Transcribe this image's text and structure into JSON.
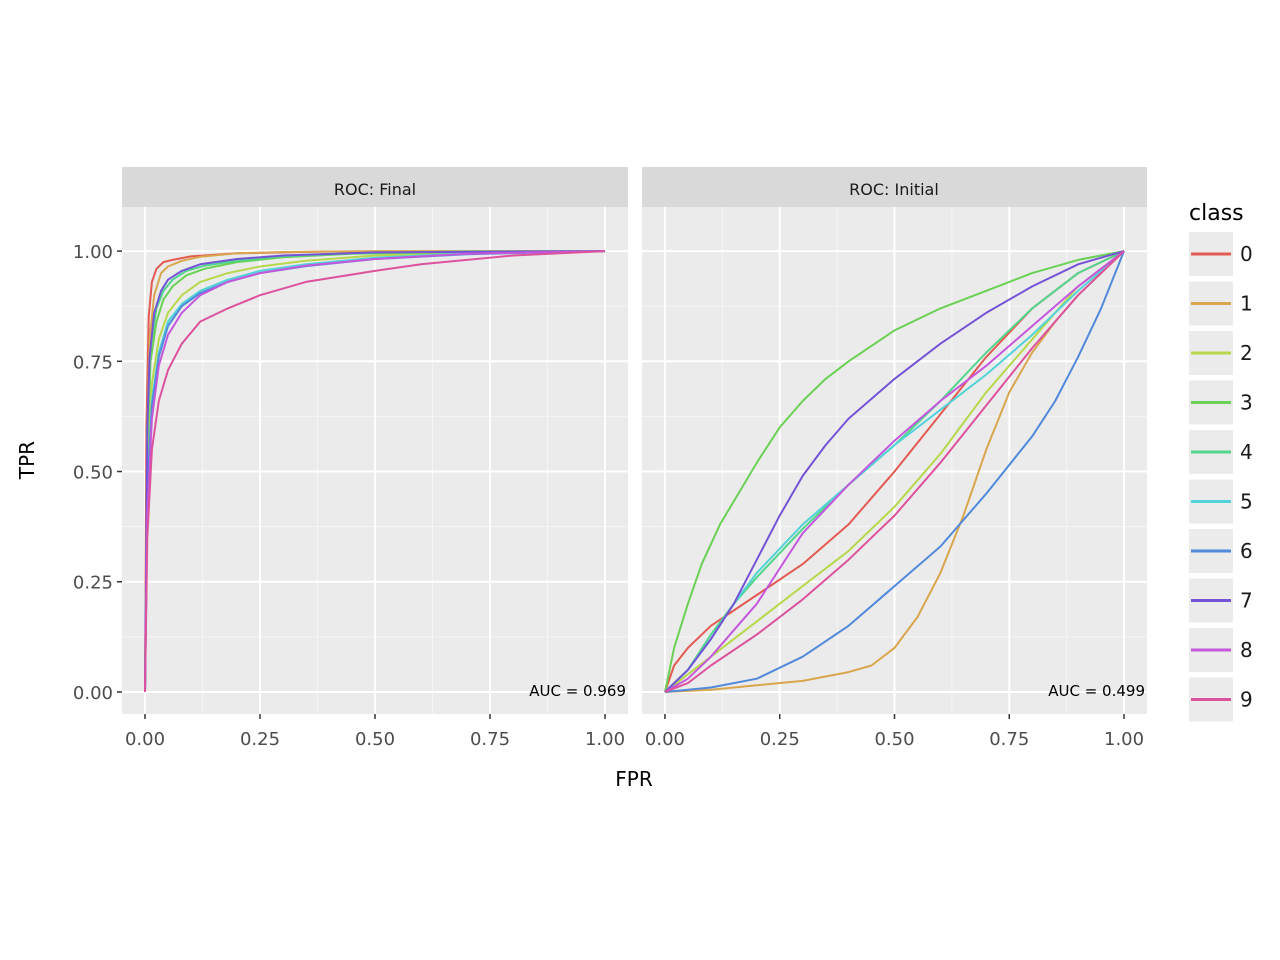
{
  "chart_data": {
    "type": "line",
    "xlabel": "FPR",
    "ylabel": "TPR",
    "xlim": [
      -0.05,
      1.05
    ],
    "ylim": [
      -0.05,
      1.1
    ],
    "ticks": [
      0,
      0.25,
      0.5,
      0.75,
      1
    ],
    "x_tick_labels": [
      "0.00",
      "0.25",
      "0.50",
      "0.75",
      "1.00"
    ],
    "y_tick_labels": [
      "0.00",
      "0.25",
      "0.50",
      "0.75",
      "1.00"
    ],
    "grid": true,
    "legend": {
      "title": "class",
      "position": "right",
      "entries": [
        {
          "label": "0",
          "color": "#e35a52"
        },
        {
          "label": "1",
          "color": "#d9a64e"
        },
        {
          "label": "2",
          "color": "#b6d84a"
        },
        {
          "label": "3",
          "color": "#6ad155"
        },
        {
          "label": "4",
          "color": "#52d68c"
        },
        {
          "label": "5",
          "color": "#52d3d7"
        },
        {
          "label": "6",
          "color": "#5189db"
        },
        {
          "label": "7",
          "color": "#7553d6"
        },
        {
          "label": "8",
          "color": "#c557dd"
        },
        {
          "label": "9",
          "color": "#dc529c"
        }
      ]
    },
    "panels": [
      {
        "strip": "ROC: Final",
        "auc_text": "AUC = 0.969",
        "series": [
          {
            "name": "0",
            "x": [
              0,
              0.003,
              0.008,
              0.015,
              0.025,
              0.04,
              0.06,
              0.1,
              0.2,
              0.4,
              1
            ],
            "y": [
              0,
              0.6,
              0.85,
              0.93,
              0.96,
              0.975,
              0.98,
              0.988,
              0.995,
              0.999,
              1
            ]
          },
          {
            "name": "1",
            "x": [
              0,
              0.005,
              0.01,
              0.02,
              0.035,
              0.05,
              0.08,
              0.12,
              0.2,
              0.3,
              0.5,
              1
            ],
            "y": [
              0,
              0.6,
              0.8,
              0.9,
              0.95,
              0.965,
              0.978,
              0.987,
              0.995,
              0.998,
              1,
              1
            ]
          },
          {
            "name": "2",
            "x": [
              0,
              0.005,
              0.015,
              0.03,
              0.05,
              0.08,
              0.12,
              0.18,
              0.25,
              0.35,
              0.5,
              0.7,
              1
            ],
            "y": [
              0,
              0.5,
              0.7,
              0.8,
              0.86,
              0.9,
              0.93,
              0.95,
              0.965,
              0.978,
              0.99,
              0.997,
              1
            ]
          },
          {
            "name": "3",
            "x": [
              0,
              0.005,
              0.012,
              0.025,
              0.04,
              0.06,
              0.09,
              0.13,
              0.2,
              0.3,
              0.45,
              0.7,
              1
            ],
            "y": [
              0,
              0.55,
              0.75,
              0.84,
              0.89,
              0.92,
              0.945,
              0.96,
              0.975,
              0.986,
              0.994,
              0.998,
              1
            ]
          },
          {
            "name": "4",
            "x": [
              0,
              0.005,
              0.012,
              0.025,
              0.04,
              0.06,
              0.09,
              0.13,
              0.2,
              0.3,
              0.45,
              0.7,
              1
            ],
            "y": [
              0,
              0.6,
              0.78,
              0.87,
              0.91,
              0.935,
              0.955,
              0.967,
              0.978,
              0.988,
              0.995,
              0.999,
              1
            ]
          },
          {
            "name": "5",
            "x": [
              0,
              0.005,
              0.015,
              0.03,
              0.05,
              0.08,
              0.12,
              0.18,
              0.25,
              0.35,
              0.5,
              0.7,
              1
            ],
            "y": [
              0,
              0.45,
              0.66,
              0.77,
              0.84,
              0.88,
              0.91,
              0.935,
              0.955,
              0.97,
              0.985,
              0.995,
              1
            ]
          },
          {
            "name": "6",
            "x": [
              0,
              0.005,
              0.015,
              0.03,
              0.05,
              0.08,
              0.12,
              0.18,
              0.25,
              0.35,
              0.5,
              0.7,
              1
            ],
            "y": [
              0,
              0.45,
              0.65,
              0.76,
              0.83,
              0.875,
              0.905,
              0.93,
              0.95,
              0.966,
              0.982,
              0.993,
              1
            ]
          },
          {
            "name": "7",
            "x": [
              0,
              0.005,
              0.01,
              0.02,
              0.035,
              0.05,
              0.08,
              0.12,
              0.2,
              0.3,
              0.5,
              1
            ],
            "y": [
              0,
              0.6,
              0.76,
              0.86,
              0.91,
              0.935,
              0.955,
              0.97,
              0.982,
              0.99,
              0.997,
              1
            ]
          },
          {
            "name": "8",
            "x": [
              0,
              0.005,
              0.015,
              0.03,
              0.05,
              0.08,
              0.12,
              0.18,
              0.25,
              0.35,
              0.5,
              0.7,
              1
            ],
            "y": [
              0,
              0.4,
              0.62,
              0.74,
              0.81,
              0.86,
              0.9,
              0.93,
              0.95,
              0.967,
              0.982,
              0.994,
              1
            ]
          },
          {
            "name": "9",
            "x": [
              0,
              0.005,
              0.015,
              0.03,
              0.05,
              0.08,
              0.12,
              0.18,
              0.25,
              0.35,
              0.5,
              0.6,
              0.8,
              1
            ],
            "y": [
              0,
              0.35,
              0.55,
              0.66,
              0.73,
              0.79,
              0.84,
              0.87,
              0.9,
              0.93,
              0.955,
              0.97,
              0.99,
              1
            ]
          }
        ]
      },
      {
        "strip": "ROC: Initial",
        "auc_text": "AUC = 0.499",
        "series": [
          {
            "name": "0",
            "x": [
              0,
              0.02,
              0.05,
              0.1,
              0.2,
              0.3,
              0.4,
              0.5,
              0.6,
              0.7,
              0.8,
              0.9,
              1
            ],
            "y": [
              0,
              0.06,
              0.1,
              0.15,
              0.22,
              0.29,
              0.38,
              0.5,
              0.63,
              0.76,
              0.87,
              0.95,
              1
            ]
          },
          {
            "name": "1",
            "x": [
              0,
              0.1,
              0.2,
              0.3,
              0.4,
              0.45,
              0.5,
              0.55,
              0.6,
              0.65,
              0.7,
              0.75,
              0.8,
              0.85,
              0.9,
              0.95,
              1
            ],
            "y": [
              0,
              0.005,
              0.015,
              0.025,
              0.045,
              0.06,
              0.1,
              0.17,
              0.27,
              0.4,
              0.55,
              0.68,
              0.77,
              0.84,
              0.9,
              0.95,
              1
            ]
          },
          {
            "name": "2",
            "x": [
              0,
              0.05,
              0.1,
              0.2,
              0.3,
              0.4,
              0.5,
              0.6,
              0.7,
              0.8,
              0.9,
              1
            ],
            "y": [
              0,
              0.04,
              0.08,
              0.16,
              0.24,
              0.32,
              0.42,
              0.54,
              0.68,
              0.8,
              0.92,
              1
            ]
          },
          {
            "name": "3",
            "x": [
              0,
              0.02,
              0.05,
              0.08,
              0.12,
              0.16,
              0.2,
              0.25,
              0.3,
              0.35,
              0.4,
              0.5,
              0.6,
              0.7,
              0.8,
              0.9,
              1
            ],
            "y": [
              0,
              0.1,
              0.2,
              0.29,
              0.38,
              0.45,
              0.52,
              0.6,
              0.66,
              0.71,
              0.75,
              0.82,
              0.87,
              0.91,
              0.95,
              0.98,
              1
            ]
          },
          {
            "name": "4",
            "x": [
              0,
              0.05,
              0.1,
              0.15,
              0.2,
              0.3,
              0.4,
              0.5,
              0.6,
              0.7,
              0.8,
              0.9,
              1
            ],
            "y": [
              0,
              0.05,
              0.13,
              0.2,
              0.26,
              0.37,
              0.47,
              0.56,
              0.66,
              0.77,
              0.87,
              0.95,
              1
            ]
          },
          {
            "name": "5",
            "x": [
              0,
              0.05,
              0.1,
              0.15,
              0.2,
              0.3,
              0.4,
              0.5,
              0.6,
              0.7,
              0.8,
              0.9,
              1
            ],
            "y": [
              0,
              0.05,
              0.12,
              0.2,
              0.27,
              0.38,
              0.47,
              0.56,
              0.64,
              0.72,
              0.81,
              0.91,
              1
            ]
          },
          {
            "name": "6",
            "x": [
              0,
              0.1,
              0.2,
              0.3,
              0.4,
              0.5,
              0.6,
              0.7,
              0.8,
              0.85,
              0.9,
              0.95,
              1
            ],
            "y": [
              0,
              0.01,
              0.03,
              0.08,
              0.15,
              0.24,
              0.33,
              0.45,
              0.58,
              0.66,
              0.76,
              0.87,
              1
            ]
          },
          {
            "name": "7",
            "x": [
              0,
              0.05,
              0.1,
              0.15,
              0.2,
              0.25,
              0.3,
              0.35,
              0.4,
              0.5,
              0.6,
              0.7,
              0.8,
              0.9,
              1
            ],
            "y": [
              0,
              0.05,
              0.12,
              0.2,
              0.3,
              0.4,
              0.49,
              0.56,
              0.62,
              0.71,
              0.79,
              0.86,
              0.92,
              0.97,
              1
            ]
          },
          {
            "name": "8",
            "x": [
              0,
              0.05,
              0.1,
              0.15,
              0.2,
              0.25,
              0.3,
              0.4,
              0.5,
              0.6,
              0.7,
              0.8,
              0.9,
              1
            ],
            "y": [
              0,
              0.03,
              0.08,
              0.14,
              0.2,
              0.28,
              0.36,
              0.47,
              0.57,
              0.66,
              0.74,
              0.83,
              0.92,
              1
            ]
          },
          {
            "name": "9",
            "x": [
              0,
              0.05,
              0.1,
              0.2,
              0.3,
              0.4,
              0.5,
              0.6,
              0.7,
              0.8,
              0.9,
              1
            ],
            "y": [
              0,
              0.02,
              0.06,
              0.13,
              0.21,
              0.3,
              0.4,
              0.52,
              0.65,
              0.78,
              0.9,
              1
            ]
          }
        ]
      }
    ]
  }
}
